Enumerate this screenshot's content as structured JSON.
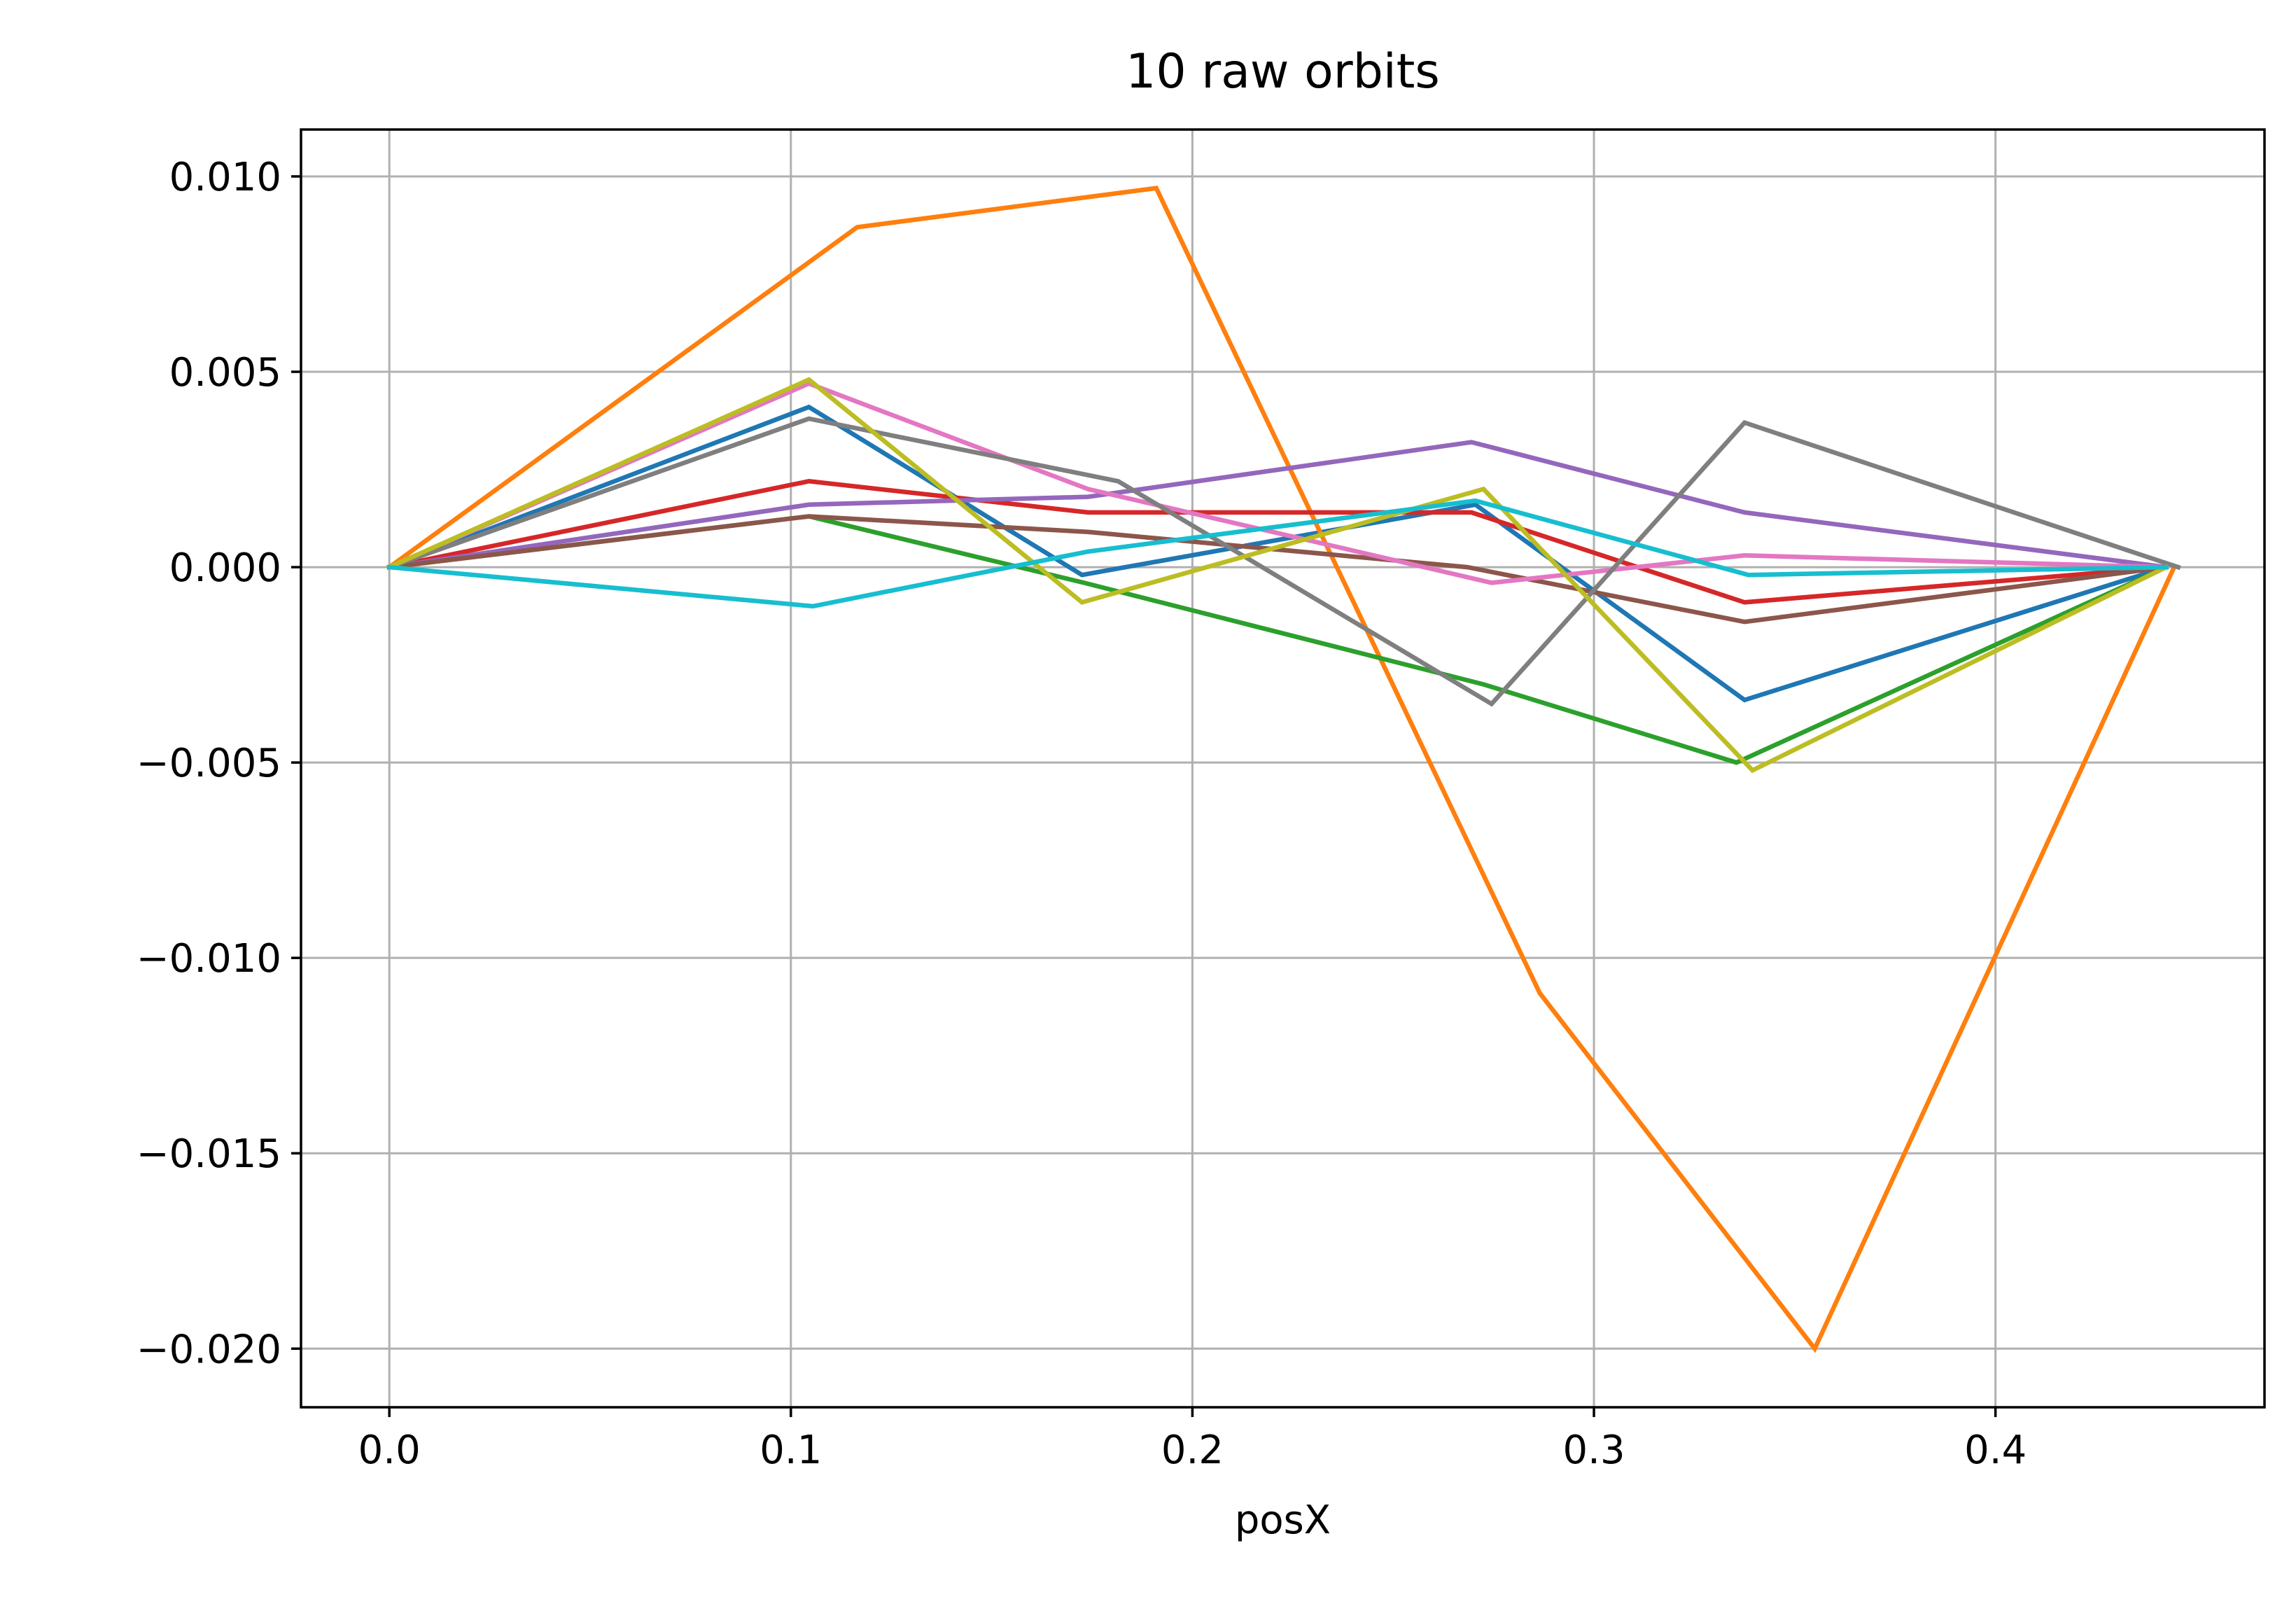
{
  "chart_data": {
    "type": "line",
    "title": "10 raw orbits",
    "xlabel": "posX",
    "ylabel": "",
    "xlim": [
      -0.022,
      0.467
    ],
    "ylim": [
      -0.0215,
      0.0112
    ],
    "xticks": [
      0.0,
      0.1,
      0.2,
      0.3,
      0.4
    ],
    "xtick_labels": [
      "0.0",
      "0.1",
      "0.2",
      "0.3",
      "0.4"
    ],
    "yticks": [
      0.01,
      0.005,
      0.0,
      -0.005,
      -0.01,
      -0.015,
      -0.02
    ],
    "ytick_labels": [
      "0.010",
      "0.005",
      "0.000",
      "−0.005",
      "−0.010",
      "−0.015",
      "−0.020"
    ],
    "grid": true,
    "legend": false,
    "series": [
      {
        "color": "#1f77b4",
        "points": [
          [
            0,
            0
          ],
          [
            0.1045,
            0.0041
          ],
          [
            0.1725,
            -0.0002
          ],
          [
            0.2705,
            0.0016
          ],
          [
            0.3375,
            -0.0034
          ],
          [
            0.4425,
            0
          ]
        ]
      },
      {
        "color": "#ff7f0e",
        "points": [
          [
            0,
            0
          ],
          [
            0.1165,
            0.0087
          ],
          [
            0.191,
            0.0097
          ],
          [
            0.2865,
            -0.0109
          ],
          [
            0.355,
            -0.02
          ],
          [
            0.4445,
            0
          ]
        ]
      },
      {
        "color": "#2ca02c",
        "points": [
          [
            0,
            0
          ],
          [
            0.1045,
            0.0013
          ],
          [
            0.173,
            -0.0004
          ],
          [
            0.2725,
            -0.003
          ],
          [
            0.3355,
            -0.005
          ],
          [
            0.4425,
            0
          ]
        ]
      },
      {
        "color": "#d62728",
        "points": [
          [
            0,
            0
          ],
          [
            0.1045,
            0.0022
          ],
          [
            0.174,
            0.0014
          ],
          [
            0.2695,
            0.0014
          ],
          [
            0.3375,
            -0.0009
          ],
          [
            0.4425,
            0
          ]
        ]
      },
      {
        "color": "#9467bd",
        "points": [
          [
            0,
            0
          ],
          [
            0.1045,
            0.0016
          ],
          [
            0.174,
            0.0018
          ],
          [
            0.2695,
            0.0032
          ],
          [
            0.3375,
            0.0014
          ],
          [
            0.4425,
            0
          ]
        ]
      },
      {
        "color": "#8c564b",
        "points": [
          [
            0,
            0
          ],
          [
            0.1045,
            0.0013
          ],
          [
            0.174,
            0.0009
          ],
          [
            0.2685,
            0.0
          ],
          [
            0.3375,
            -0.0014
          ],
          [
            0.4425,
            0
          ]
        ]
      },
      {
        "color": "#e377c2",
        "points": [
          [
            0,
            0
          ],
          [
            0.1045,
            0.0047
          ],
          [
            0.174,
            0.002
          ],
          [
            0.2745,
            -0.0004
          ],
          [
            0.3375,
            0.0003
          ],
          [
            0.4425,
            0
          ]
        ]
      },
      {
        "color": "#7f7f7f",
        "points": [
          [
            0,
            0
          ],
          [
            0.1045,
            0.0038
          ],
          [
            0.1815,
            0.0022
          ],
          [
            0.2745,
            -0.0035
          ],
          [
            0.3375,
            0.0037
          ],
          [
            0.4455,
            0
          ]
        ]
      },
      {
        "color": "#bcbd22",
        "points": [
          [
            0,
            0
          ],
          [
            0.1045,
            0.0048
          ],
          [
            0.1725,
            -0.0009
          ],
          [
            0.2725,
            0.002
          ],
          [
            0.3395,
            -0.0052
          ],
          [
            0.4425,
            0
          ]
        ]
      },
      {
        "color": "#17becf",
        "points": [
          [
            0,
            0
          ],
          [
            0.1055,
            -0.001
          ],
          [
            0.174,
            0.0004
          ],
          [
            0.2705,
            0.0017
          ],
          [
            0.3385,
            -0.0002
          ],
          [
            0.4425,
            0
          ]
        ]
      }
    ]
  }
}
